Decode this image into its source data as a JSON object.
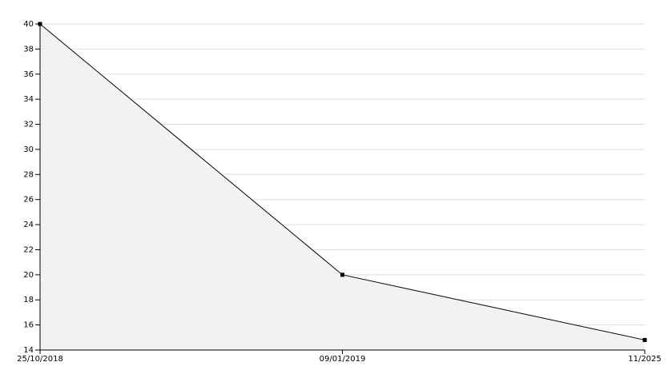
{
  "chart_data": {
    "type": "area",
    "categories": [
      "25/10/2018",
      "09/01/2019",
      "11/2025"
    ],
    "values": [
      40,
      20,
      14.8
    ],
    "color": "#000000",
    "fill": "#f2f2f2",
    "ylim": [
      14,
      40
    ],
    "yticks": [
      14,
      16,
      18,
      20,
      22,
      24,
      26,
      28,
      30,
      32,
      34,
      36,
      38,
      40
    ],
    "grid": true
  }
}
